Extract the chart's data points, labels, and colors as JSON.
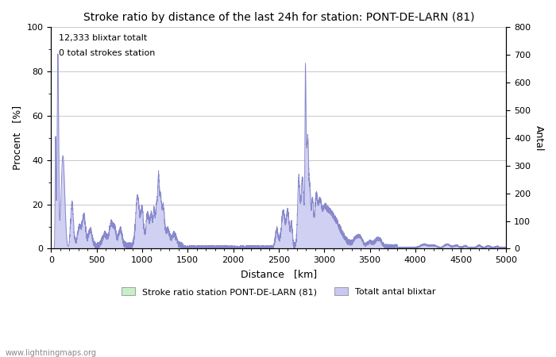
{
  "title": "Stroke ratio by distance of the last 24h for station: PONT-DE-LARN (81)",
  "xlabel": "Distance   [km]",
  "ylabel_left": "Procent   [%]",
  "ylabel_right": "Antal",
  "annotation_line1": "12,333 blixtar totalt",
  "annotation_line2": "0 total strokes station",
  "watermark": "www.lightningmaps.org",
  "legend_label_green": "Stroke ratio station PONT-DE-LARN (81)",
  "legend_label_blue": "Totalt antal blixtar",
  "xlim": [
    0,
    5000
  ],
  "ylim_left": [
    0,
    100
  ],
  "ylim_right": [
    0,
    800
  ],
  "xticks": [
    0,
    500,
    1000,
    1500,
    2000,
    2500,
    3000,
    3500,
    4000,
    4500,
    5000
  ],
  "yticks_left": [
    0,
    20,
    40,
    60,
    80,
    100
  ],
  "yticks_right": [
    0,
    100,
    200,
    300,
    400,
    500,
    600,
    700,
    800
  ],
  "background_color": "#ffffff",
  "plot_bg_color": "#ffffff",
  "grid_color": "#c8c8c8",
  "fill_color_blue": "#c8c8f0",
  "line_color_blue": "#8888cc",
  "fill_color_green": "#c8f0c8",
  "line_color_green": "#88cc88",
  "figsize": [
    7.0,
    4.5
  ],
  "dpi": 100
}
